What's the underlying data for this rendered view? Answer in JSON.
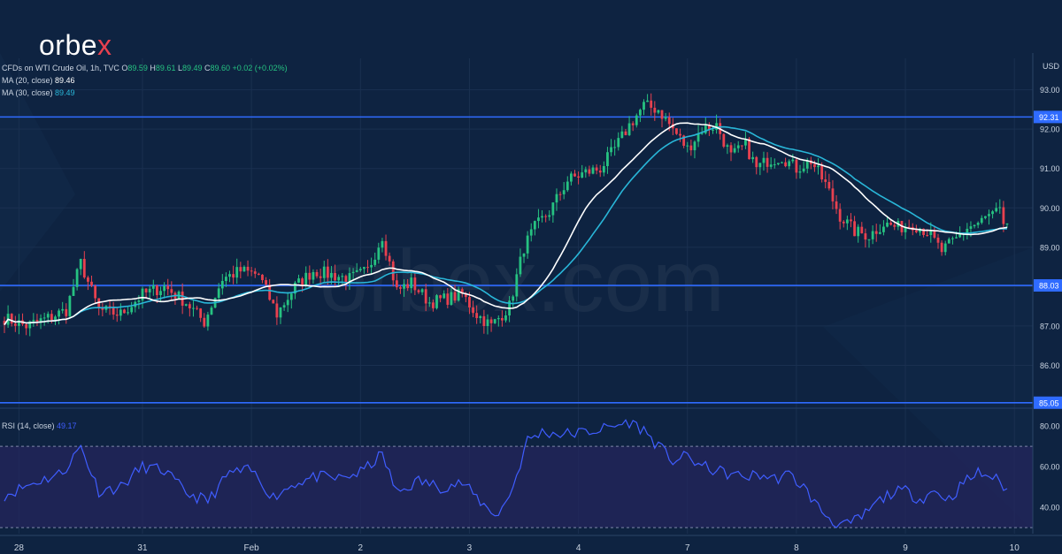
{
  "brand": {
    "logo_text": "orbex",
    "watermark": "orbex.com"
  },
  "colors": {
    "background": "#0e2341",
    "grid": "#1a3050",
    "up": "#26c281",
    "down": "#e8414f",
    "ma20": "#ffffff",
    "ma30": "#29b6d8",
    "level_line": "#2f6bff",
    "level_tag": "#2f6bff",
    "rsi_line": "#3f5dff",
    "rsi_band": "#24265c",
    "text": "#c9d3e0",
    "muted": "#8fa0b8"
  },
  "legend": {
    "symbol": "CFDs on WTI Crude Oil, 1h, TVC",
    "ohlc": [
      {
        "label": "O",
        "value": "89.59"
      },
      {
        "label": "H",
        "value": "89.61"
      },
      {
        "label": "L",
        "value": "89.49"
      },
      {
        "label": "C",
        "value": "89.60"
      }
    ],
    "change": "+0.02 (+0.02%)",
    "ma20": {
      "label": "MA (20, close)",
      "value": "89.46"
    },
    "ma30": {
      "label": "MA (30, close)",
      "value": "89.49"
    },
    "rsi": {
      "label": "RSI (14, close)",
      "value": "49.17"
    }
  },
  "chart_data": [
    {
      "type": "candlestick",
      "currency_label": "USD",
      "y_ticks": [
        86.0,
        87.0,
        88.0,
        89.0,
        90.0,
        91.0,
        92.0,
        93.0
      ],
      "y_tick_labels": [
        "86.00",
        "87.00",
        "88.00",
        "89.00",
        "90.00",
        "91.00",
        "92.00",
        "93.00"
      ],
      "ylim": [
        85.0,
        93.8
      ],
      "x_labels": [
        "28",
        "31",
        "Feb",
        "2",
        "3",
        "4",
        "7",
        "8",
        "9",
        "10"
      ],
      "levels": [
        {
          "value": 92.31,
          "label": "92.31"
        },
        {
          "value": 88.03,
          "label": "88.03"
        },
        {
          "value": 85.05,
          "label": "85.05"
        }
      ],
      "anchors": [
        [
          0,
          87.2
        ],
        [
          6,
          87.0
        ],
        [
          12,
          87.2
        ],
        [
          17,
          87.4
        ],
        [
          21,
          88.6
        ],
        [
          26,
          87.4
        ],
        [
          32,
          87.3
        ],
        [
          38,
          87.8
        ],
        [
          44,
          88.0
        ],
        [
          50,
          87.6
        ],
        [
          55,
          87.1
        ],
        [
          60,
          88.2
        ],
        [
          65,
          88.4
        ],
        [
          70,
          88.3
        ],
        [
          75,
          87.3
        ],
        [
          80,
          88.0
        ],
        [
          85,
          88.4
        ],
        [
          90,
          88.3
        ],
        [
          95,
          88.2
        ],
        [
          100,
          88.4
        ],
        [
          104,
          89.3
        ],
        [
          108,
          87.9
        ],
        [
          112,
          88.1
        ],
        [
          117,
          87.6
        ],
        [
          122,
          87.7
        ],
        [
          126,
          87.8
        ],
        [
          130,
          87.3
        ],
        [
          134,
          87.0
        ],
        [
          139,
          87.5
        ],
        [
          143,
          89.0
        ],
        [
          146,
          89.5
        ],
        [
          150,
          89.9
        ],
        [
          155,
          90.7
        ],
        [
          160,
          90.9
        ],
        [
          164,
          91.0
        ],
        [
          168,
          91.5
        ],
        [
          172,
          92.1
        ],
        [
          176,
          92.6
        ],
        [
          180,
          92.5
        ],
        [
          184,
          92.0
        ],
        [
          188,
          91.5
        ],
        [
          192,
          92.0
        ],
        [
          196,
          92.1
        ],
        [
          200,
          91.3
        ],
        [
          204,
          91.6
        ],
        [
          207,
          91.0
        ],
        [
          210,
          91.2
        ],
        [
          214,
          91.3
        ],
        [
          218,
          91.0
        ],
        [
          222,
          91.2
        ],
        [
          226,
          90.6
        ],
        [
          230,
          89.8
        ],
        [
          234,
          89.4
        ],
        [
          238,
          89.3
        ],
        [
          242,
          89.6
        ],
        [
          246,
          89.5
        ],
        [
          250,
          89.6
        ],
        [
          254,
          89.4
        ],
        [
          258,
          88.9
        ],
        [
          262,
          89.2
        ],
        [
          265,
          89.5
        ],
        [
          268,
          89.6
        ],
        [
          271,
          89.8
        ],
        [
          274,
          89.9
        ],
        [
          276,
          89.6
        ]
      ],
      "series": [
        {
          "name": "MA (20, close)",
          "last": 89.46
        },
        {
          "name": "MA (30, close)",
          "last": 89.49
        }
      ],
      "last_candle": {
        "open": 89.59,
        "high": 89.61,
        "low": 89.49,
        "close": 89.6
      }
    },
    {
      "type": "line",
      "y_ticks": [
        40,
        60,
        80
      ],
      "y_tick_labels": [
        "40.00",
        "60.00",
        "80.00"
      ],
      "ylim": [
        27,
        87
      ],
      "band": [
        30,
        70
      ],
      "series": [
        {
          "name": "RSI (14, close)",
          "anchors": [
            [
              0,
              46
            ],
            [
              8,
              52
            ],
            [
              16,
              57
            ],
            [
              21,
              70
            ],
            [
              26,
              48
            ],
            [
              32,
              50
            ],
            [
              38,
              60
            ],
            [
              44,
              58
            ],
            [
              50,
              47
            ],
            [
              56,
              43
            ],
            [
              62,
              57
            ],
            [
              68,
              58
            ],
            [
              74,
              45
            ],
            [
              80,
              52
            ],
            [
              86,
              55
            ],
            [
              92,
              54
            ],
            [
              98,
              57
            ],
            [
              104,
              66
            ],
            [
              108,
              47
            ],
            [
              114,
              53
            ],
            [
              120,
              50
            ],
            [
              126,
              52
            ],
            [
              132,
              41
            ],
            [
              136,
              36
            ],
            [
              140,
              50
            ],
            [
              144,
              73
            ],
            [
              148,
              77
            ],
            [
              154,
              76
            ],
            [
              160,
              77
            ],
            [
              166,
              79
            ],
            [
              172,
              82
            ],
            [
              176,
              78
            ],
            [
              180,
              70
            ],
            [
              184,
              63
            ],
            [
              188,
              65
            ],
            [
              192,
              60
            ],
            [
              196,
              58
            ],
            [
              200,
              56
            ],
            [
              204,
              55
            ],
            [
              208,
              56
            ],
            [
              212,
              54
            ],
            [
              216,
              56
            ],
            [
              220,
              50
            ],
            [
              224,
              40
            ],
            [
              228,
              33
            ],
            [
              232,
              31
            ],
            [
              236,
              35
            ],
            [
              240,
              42
            ],
            [
              244,
              47
            ],
            [
              248,
              48
            ],
            [
              252,
              44
            ],
            [
              256,
              48
            ],
            [
              260,
              44
            ],
            [
              264,
              52
            ],
            [
              268,
              57
            ],
            [
              272,
              55
            ],
            [
              276,
              49
            ]
          ],
          "last": 49.17
        }
      ]
    }
  ]
}
